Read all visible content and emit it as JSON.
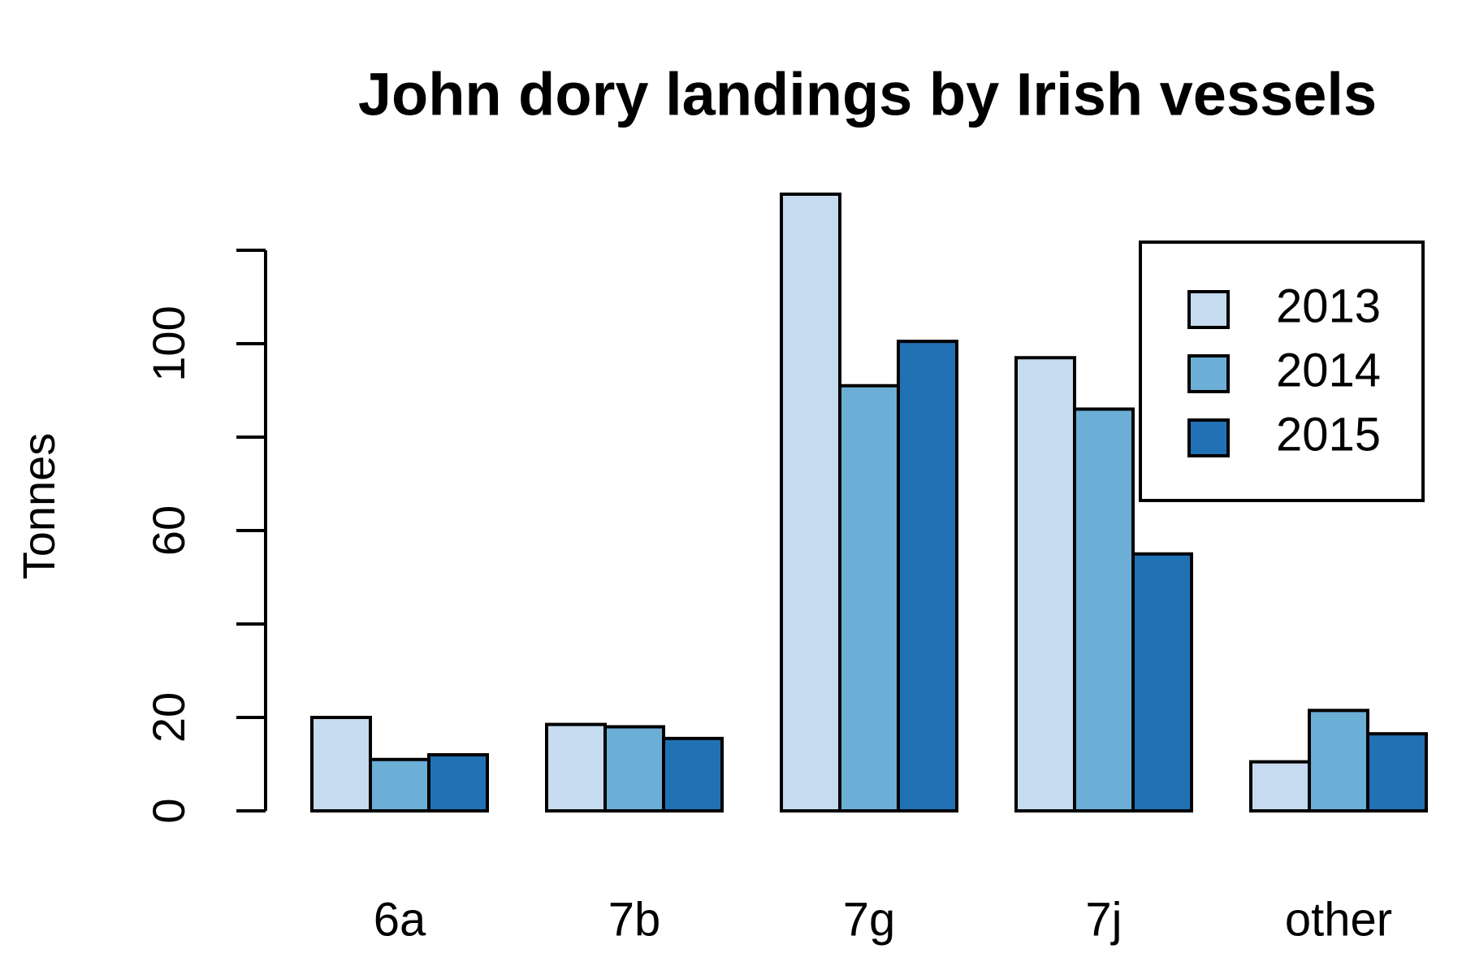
{
  "chart_data": {
    "type": "bar",
    "title": "John dory landings by Irish vessels",
    "ylabel": "Tonnes",
    "categories": [
      "6a",
      "7b",
      "7g",
      "7j",
      "other"
    ],
    "series": [
      {
        "name": "2013",
        "color": "#c6dbef",
        "values": [
          20,
          18.5,
          132,
          97,
          10.5
        ]
      },
      {
        "name": "2014",
        "color": "#6baed6",
        "values": [
          11,
          18,
          91,
          86,
          21.5
        ]
      },
      {
        "name": "2015",
        "color": "#2171b5",
        "values": [
          12,
          15.5,
          100.5,
          55,
          16.5
        ]
      }
    ],
    "ylim": [
      0,
      135
    ],
    "yticks": [
      0,
      20,
      {
        "value": 40,
        "label": null
      },
      60,
      {
        "value": 80,
        "label": null
      },
      100,
      {
        "value": 120,
        "label": null
      }
    ],
    "grid": false,
    "legend": "top-right"
  }
}
